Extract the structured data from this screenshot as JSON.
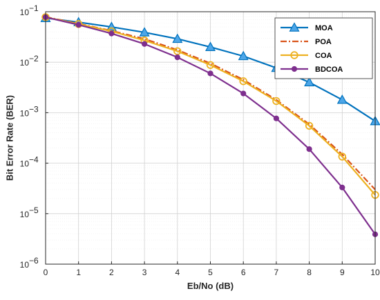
{
  "chart_data": {
    "type": "line",
    "title": "",
    "xlabel": "Eb/No (dB)",
    "ylabel": "Bit Error Rate (BER)",
    "xlim": [
      0,
      10
    ],
    "ylim": [
      1e-06,
      0.1
    ],
    "y_scale": "log",
    "grid": "on",
    "legend_position": "top-right",
    "x_ticks": [
      0,
      1,
      2,
      3,
      4,
      5,
      6,
      7,
      8,
      9,
      10
    ],
    "y_ticks": [
      {
        "value": 0.1,
        "base": "10",
        "exp": "−1"
      },
      {
        "value": 0.01,
        "base": "10",
        "exp": "−2"
      },
      {
        "value": 0.001,
        "base": "10",
        "exp": "−3"
      },
      {
        "value": 0.0001,
        "base": "10",
        "exp": "−4"
      },
      {
        "value": 1e-05,
        "base": "10",
        "exp": "−5"
      },
      {
        "value": 1e-06,
        "base": "10",
        "exp": "−6"
      }
    ],
    "x": [
      0,
      1,
      2,
      3,
      4,
      5,
      6,
      7,
      8,
      9,
      10
    ],
    "series": [
      {
        "name": "MOA",
        "color": "#0072BD",
        "marker": "triangle",
        "line": "solid",
        "values": [
          0.075,
          0.062,
          0.05,
          0.039,
          0.029,
          0.02,
          0.0132,
          0.0077,
          0.004,
          0.0018,
          0.00068
        ]
      },
      {
        "name": "POA",
        "color": "#D95319",
        "marker": "none",
        "line": "dashdot",
        "values": [
          0.079,
          0.058,
          0.042,
          0.029,
          0.0175,
          0.0095,
          0.0045,
          0.0018,
          0.00059,
          0.00015,
          3e-05
        ]
      },
      {
        "name": "COA",
        "color": "#EDB120",
        "marker": "circle-open",
        "line": "solid",
        "values": [
          0.078,
          0.057,
          0.041,
          0.027,
          0.0165,
          0.0088,
          0.0042,
          0.0017,
          0.00055,
          0.000135,
          2.35e-05
        ]
      },
      {
        "name": "BDCOA",
        "color": "#7E2F8E",
        "marker": "circle-filled",
        "line": "solid",
        "values": [
          0.078,
          0.055,
          0.037,
          0.023,
          0.0125,
          0.006,
          0.0024,
          0.00077,
          0.00019,
          3.3e-05,
          3.9e-06
        ]
      }
    ]
  }
}
